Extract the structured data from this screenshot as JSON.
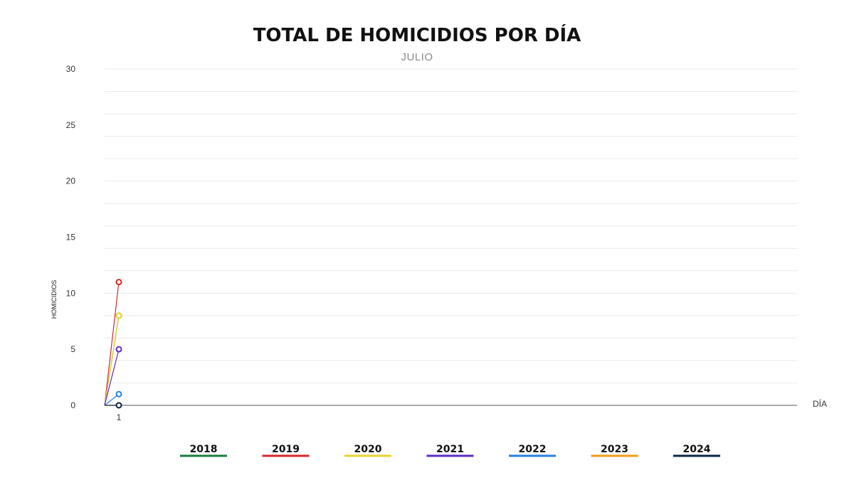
{
  "chart_data": {
    "type": "line",
    "title": "TOTAL DE HOMICIDIOS POR DÍA",
    "subtitle": "JULIO",
    "xlabel": "DÍA",
    "ylabel": "HOMICIDIOS",
    "ylim": [
      0,
      30
    ],
    "yticks": [
      0,
      5,
      10,
      15,
      20,
      25,
      30
    ],
    "x_categories": [
      "1"
    ],
    "grid": true,
    "legend_position": "bottom",
    "series": [
      {
        "name": "2018",
        "color": "#1a7a3c",
        "values": [
          8
        ]
      },
      {
        "name": "2019",
        "color": "#d62728",
        "values": [
          11
        ]
      },
      {
        "name": "2020",
        "color": "#e8d22e",
        "values": [
          8
        ]
      },
      {
        "name": "2021",
        "color": "#5b2bc4",
        "values": [
          5
        ]
      },
      {
        "name": "2022",
        "color": "#2a7de1",
        "values": [
          1
        ]
      },
      {
        "name": "2023",
        "color": "#f39c12",
        "values": [
          0
        ]
      },
      {
        "name": "2024",
        "color": "#0b2545",
        "values": [
          0
        ]
      }
    ]
  }
}
